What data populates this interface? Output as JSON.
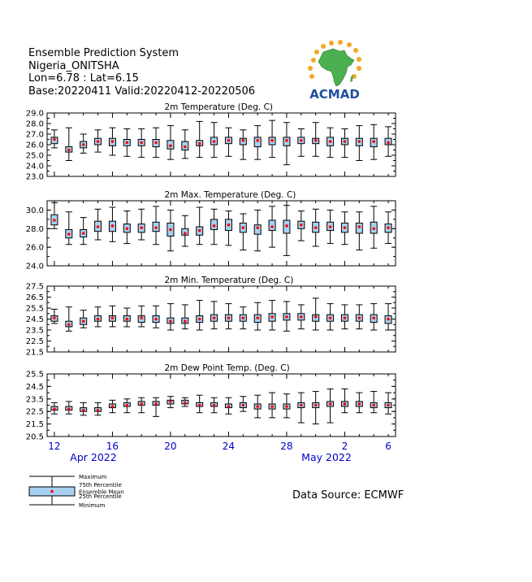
{
  "header": {
    "title": "Ensemble Prediction System",
    "location": "Nigeria_ONITSHA",
    "coords": "Lon=6.78 : Lat=6.15",
    "dates": "Base:20220411 Valid:20220412-20220506"
  },
  "logo": {
    "text": "ACMAD",
    "colors": {
      "africa": "#4caf50",
      "sun": "#f5a623",
      "text": "#1f4e9c"
    }
  },
  "source": "Data Source: ECMWF",
  "legend": {
    "maximum": "Maximum",
    "p75": "75th Percentile",
    "mean": "Ensemble Mean",
    "p25": "25th Percentile",
    "minimum": "Minimum"
  },
  "xaxis": {
    "ticks": [
      "12",
      "16",
      "20",
      "24",
      "28",
      "2",
      "6"
    ],
    "months": [
      "Apr 2022",
      "May 2022"
    ],
    "color": "#0000cc"
  },
  "colors": {
    "box": "#a8d0f0",
    "mean": "#ff0000",
    "line": "#000000"
  },
  "chart_data": [
    {
      "type": "box",
      "title": "2m Temperature (Deg. C)",
      "ylim": [
        23.0,
        29.0
      ],
      "yticks": [
        "29.0",
        "28.0",
        "27.0",
        "26.0",
        "25.0",
        "24.0",
        "23.0"
      ],
      "series": {
        "min": [
          25.7,
          24.5,
          25.2,
          25.3,
          25.0,
          24.9,
          24.8,
          24.8,
          24.6,
          24.7,
          24.8,
          24.8,
          24.9,
          24.6,
          24.6,
          24.8,
          24.1,
          24.9,
          24.9,
          24.8,
          24.8,
          24.5,
          24.6,
          24.9
        ],
        "p25": [
          26.1,
          25.3,
          25.7,
          26.0,
          25.9,
          25.9,
          25.9,
          25.8,
          25.6,
          25.5,
          25.9,
          26.0,
          26.1,
          26.0,
          25.8,
          26.0,
          25.9,
          26.1,
          26.1,
          25.9,
          26.0,
          25.9,
          25.8,
          26.0
        ],
        "mean": [
          26.5,
          25.5,
          26.0,
          26.3,
          26.3,
          26.2,
          26.2,
          26.2,
          25.9,
          25.8,
          26.1,
          26.3,
          26.4,
          26.4,
          26.4,
          26.4,
          26.4,
          26.4,
          26.4,
          26.3,
          26.3,
          26.3,
          26.3,
          26.2
        ],
        "p75": [
          26.7,
          25.8,
          26.3,
          26.6,
          26.6,
          26.5,
          26.5,
          26.5,
          26.4,
          26.3,
          26.4,
          26.7,
          26.7,
          26.6,
          26.7,
          26.7,
          26.7,
          26.7,
          26.6,
          26.7,
          26.6,
          26.6,
          26.6,
          26.6
        ],
        "max": [
          27.4,
          27.6,
          27.0,
          27.4,
          27.6,
          27.5,
          27.5,
          27.6,
          27.8,
          27.4,
          28.2,
          28.1,
          27.6,
          27.4,
          27.8,
          28.3,
          28.1,
          27.5,
          28.1,
          27.6,
          27.5,
          27.8,
          27.9,
          27.7
        ]
      }
    },
    {
      "type": "box",
      "title": "2m Max. Temperature (Deg. C)",
      "ylim": [
        24.0,
        31.0
      ],
      "yticks": [
        "30.0",
        "28.0",
        "26.0",
        "24.0"
      ],
      "series": {
        "min": [
          28.0,
          26.3,
          26.3,
          26.8,
          26.6,
          26.4,
          26.8,
          26.3,
          25.6,
          26.1,
          26.3,
          26.3,
          26.2,
          25.7,
          25.6,
          26.0,
          25.1,
          26.7,
          26.1,
          26.4,
          26.3,
          25.7,
          25.9,
          26.4
        ],
        "p25": [
          28.4,
          27.0,
          27.1,
          27.7,
          27.7,
          27.6,
          27.6,
          27.7,
          27.2,
          27.3,
          27.3,
          27.9,
          27.8,
          27.6,
          27.4,
          27.8,
          27.5,
          28.0,
          27.6,
          27.8,
          27.6,
          27.5,
          27.5,
          27.6
        ],
        "mean": [
          28.9,
          27.4,
          27.5,
          28.2,
          28.3,
          28.0,
          28.1,
          28.1,
          27.9,
          27.5,
          27.8,
          28.3,
          28.4,
          28.1,
          28.1,
          28.2,
          28.3,
          28.4,
          28.1,
          28.2,
          28.1,
          28.2,
          28.0,
          28.1
        ],
        "p75": [
          29.5,
          27.9,
          27.9,
          28.8,
          28.8,
          28.5,
          28.5,
          28.7,
          28.6,
          28.0,
          28.2,
          29.0,
          29.0,
          28.6,
          28.4,
          28.9,
          28.9,
          28.8,
          28.7,
          28.7,
          28.6,
          28.6,
          28.7,
          28.5
        ],
        "max": [
          30.8,
          29.8,
          29.2,
          30.1,
          30.3,
          29.9,
          30.1,
          30.4,
          30.0,
          29.4,
          30.3,
          30.1,
          29.9,
          29.6,
          30.0,
          30.4,
          30.5,
          29.9,
          30.1,
          30.0,
          29.8,
          29.8,
          30.4,
          29.8
        ]
      }
    },
    {
      "type": "box",
      "title": "2m Min. Temperature (Deg. C)",
      "ylim": [
        21.5,
        27.5
      ],
      "yticks": [
        "27.5",
        "26.5",
        "25.5",
        "24.5",
        "23.5",
        "22.5",
        "21.5"
      ],
      "series": {
        "min": [
          24.1,
          23.4,
          23.7,
          23.8,
          23.8,
          23.8,
          23.8,
          23.7,
          23.5,
          23.6,
          23.5,
          23.6,
          23.6,
          23.6,
          23.5,
          23.5,
          23.4,
          23.6,
          23.5,
          23.5,
          23.6,
          23.6,
          23.5,
          23.5
        ],
        "p25": [
          24.3,
          23.8,
          24.0,
          24.3,
          24.3,
          24.3,
          24.2,
          24.2,
          24.1,
          24.1,
          24.2,
          24.3,
          24.3,
          24.3,
          24.2,
          24.3,
          24.4,
          24.4,
          24.3,
          24.3,
          24.3,
          24.3,
          24.2,
          24.1
        ],
        "mean": [
          24.6,
          24.0,
          24.3,
          24.5,
          24.6,
          24.5,
          24.6,
          24.5,
          24.3,
          24.3,
          24.5,
          24.6,
          24.6,
          24.6,
          24.6,
          24.7,
          24.7,
          24.7,
          24.7,
          24.6,
          24.6,
          24.6,
          24.6,
          24.5
        ],
        "p75": [
          24.8,
          24.3,
          24.6,
          24.8,
          24.8,
          24.8,
          24.8,
          24.8,
          24.6,
          24.6,
          24.8,
          24.9,
          24.9,
          24.9,
          24.9,
          25.0,
          25.0,
          25.0,
          24.9,
          24.9,
          24.9,
          24.9,
          24.9,
          24.8
        ],
        "max": [
          25.4,
          25.6,
          25.3,
          25.6,
          25.7,
          25.5,
          25.7,
          25.7,
          25.9,
          25.8,
          26.2,
          26.1,
          25.9,
          25.6,
          26.0,
          26.2,
          26.1,
          25.8,
          26.4,
          25.9,
          25.8,
          25.8,
          25.9,
          25.9
        ]
      }
    },
    {
      "type": "box",
      "title": "2m Dew Point Temp. (Deg. C)",
      "ylim": [
        20.5,
        25.5
      ],
      "yticks": [
        "25.5",
        "24.5",
        "23.5",
        "22.5",
        "21.5",
        "20.5"
      ],
      "series": {
        "min": [
          22.3,
          22.3,
          22.2,
          22.2,
          22.4,
          22.4,
          22.4,
          22.1,
          22.8,
          22.9,
          22.4,
          22.4,
          22.3,
          22.5,
          22.0,
          22.0,
          22.0,
          21.6,
          21.5,
          21.6,
          22.4,
          22.4,
          22.4,
          22.3
        ],
        "p25": [
          22.6,
          22.6,
          22.5,
          22.5,
          22.8,
          22.9,
          23.0,
          23.0,
          23.1,
          23.1,
          22.9,
          22.9,
          22.8,
          22.8,
          22.7,
          22.7,
          22.7,
          22.8,
          22.8,
          22.9,
          22.9,
          22.9,
          22.8,
          22.8
        ],
        "mean": [
          22.7,
          22.7,
          22.6,
          22.6,
          22.9,
          23.0,
          23.1,
          23.1,
          23.3,
          23.2,
          23.0,
          23.0,
          22.9,
          23.0,
          22.9,
          22.9,
          22.9,
          23.0,
          23.0,
          23.1,
          23.1,
          23.1,
          23.0,
          23.0
        ],
        "p75": [
          22.9,
          22.9,
          22.8,
          22.8,
          23.1,
          23.2,
          23.3,
          23.3,
          23.4,
          23.4,
          23.2,
          23.2,
          23.1,
          23.2,
          23.1,
          23.1,
          23.1,
          23.2,
          23.2,
          23.3,
          23.3,
          23.3,
          23.2,
          23.2
        ],
        "max": [
          23.2,
          23.3,
          23.2,
          23.2,
          23.4,
          23.5,
          23.6,
          23.6,
          23.7,
          23.6,
          23.8,
          23.6,
          23.6,
          23.7,
          23.8,
          24.0,
          23.9,
          24.0,
          24.1,
          24.3,
          24.3,
          24.0,
          24.1,
          24.0
        ]
      }
    }
  ]
}
